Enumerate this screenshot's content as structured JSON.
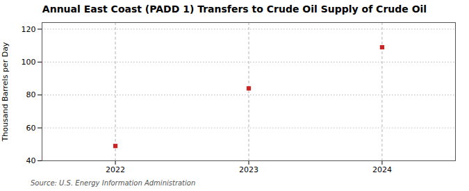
{
  "chart_data": {
    "type": "scatter",
    "title": "Annual East Coast (PADD 1) Transfers to Crude Oil Supply of Crude Oil",
    "ylabel": "Thousand Barrels per Day",
    "source": "Source: U.S. Energy Information Administration",
    "x": [
      2022,
      2023,
      2024
    ],
    "values": [
      49,
      84,
      109
    ],
    "color": "#cc2222",
    "marker": "square",
    "xlim": [
      2021.45,
      2024.55
    ],
    "ylim": [
      40,
      124
    ],
    "xticks": [
      2022,
      2023,
      2024
    ],
    "yticks": [
      40,
      60,
      80,
      100,
      120
    ],
    "grid": true
  }
}
